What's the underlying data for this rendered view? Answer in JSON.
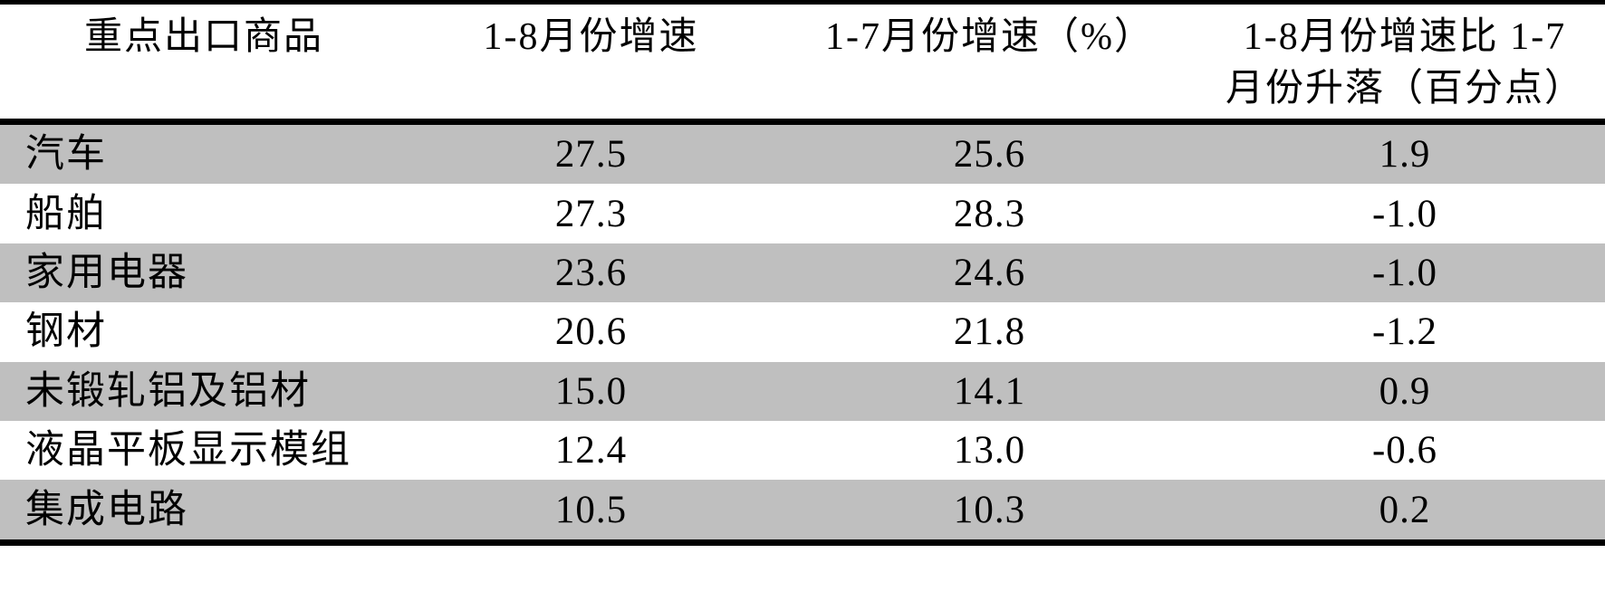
{
  "table": {
    "header": {
      "col1": "重点出口商品",
      "col2": "1-8月份增速",
      "col3": "1-7月份增速（%）",
      "col4_line1": "1-8月份增速比 1-7",
      "col4_line2": "月份升落（百分点）"
    },
    "rows": [
      {
        "name": "汽车",
        "growth_1_8": "27.5",
        "growth_1_7": "25.6",
        "change": "1.9"
      },
      {
        "name": "船舶",
        "growth_1_8": "27.3",
        "growth_1_7": "28.3",
        "change": "-1.0"
      },
      {
        "name": "家用电器",
        "growth_1_8": "23.6",
        "growth_1_7": "24.6",
        "change": "-1.0"
      },
      {
        "name": "钢材",
        "growth_1_8": "20.6",
        "growth_1_7": "21.8",
        "change": "-1.2"
      },
      {
        "name": "未锻轧铝及铝材",
        "growth_1_8": "15.0",
        "growth_1_7": "14.1",
        "change": "0.9"
      },
      {
        "name": "液晶平板显示模组",
        "growth_1_8": "12.4",
        "growth_1_7": "13.0",
        "change": "-0.6"
      },
      {
        "name": "集成电路",
        "growth_1_8": "10.5",
        "growth_1_7": "10.3",
        "change": "0.2"
      }
    ]
  },
  "colors": {
    "row_alt_background": "#bfbfbf",
    "row_background": "#ffffff",
    "rule": "#000000",
    "text": "#000000"
  },
  "chart_data": {
    "type": "table",
    "title": "",
    "columns": [
      "重点出口商品",
      "1-8月份增速",
      "1-7月份增速（%）",
      "1-8月份增速比 1-7月份升落（百分点）"
    ],
    "categories": [
      "汽车",
      "船舶",
      "家用电器",
      "钢材",
      "未锻轧铝及铝材",
      "液晶平板显示模组",
      "集成电路"
    ],
    "series": [
      {
        "name": "1-8月份增速",
        "values": [
          27.5,
          27.3,
          23.6,
          20.6,
          15.0,
          12.4,
          10.5
        ]
      },
      {
        "name": "1-7月份增速（%）",
        "values": [
          25.6,
          28.3,
          24.6,
          21.8,
          14.1,
          13.0,
          10.3
        ]
      },
      {
        "name": "1-8月份增速比 1-7月份升落（百分点）",
        "values": [
          1.9,
          -1.0,
          -1.0,
          -1.2,
          0.9,
          -0.6,
          0.2
        ]
      }
    ]
  }
}
